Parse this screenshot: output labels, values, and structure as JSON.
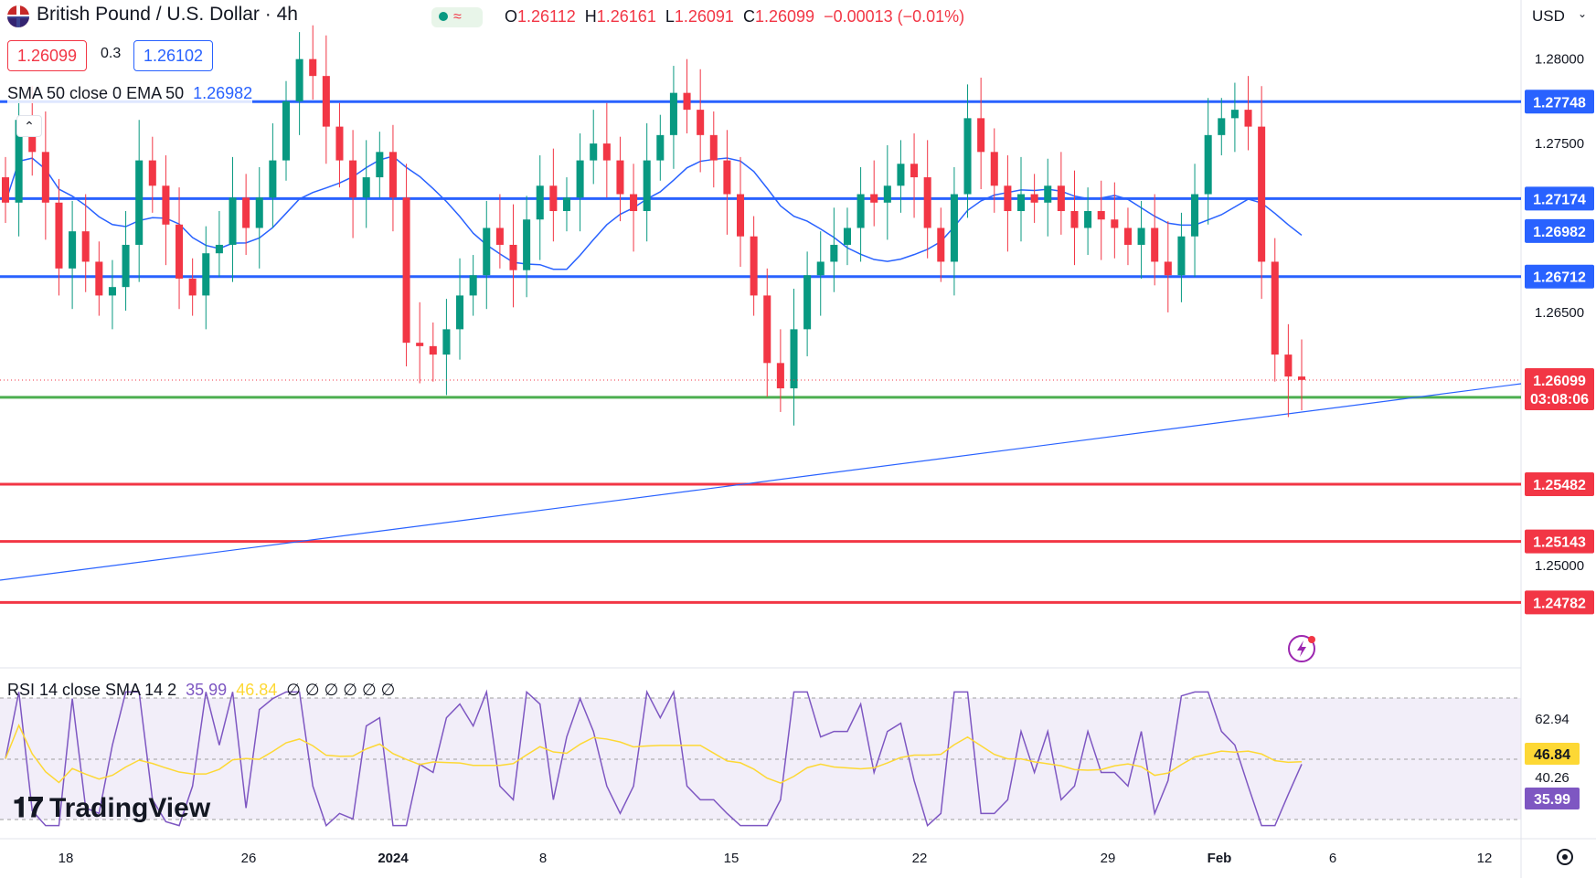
{
  "header": {
    "symbol_title": "British Pound / U.S. Dollar",
    "interval": "4h",
    "ohlc": {
      "o_label": "O",
      "o": "1.26112",
      "h_label": "H",
      "h": "1.26161",
      "l_label": "L",
      "l": "1.26091",
      "c_label": "C",
      "c": "1.26099",
      "change": "−0.00013 (−0.01%)"
    },
    "bid": "1.26099",
    "spread": "0.3",
    "ask": "1.26102",
    "currency": "USD"
  },
  "indicators": {
    "ma_legend": "SMA 50 close 0 EMA 50",
    "ma_value": "1.26982",
    "rsi_legend": "RSI 14 close SMA 14 2",
    "rsi_value": "35.99",
    "rsi_sma_value": "46.84",
    "rsi_trailing": "∅ ∅ ∅ ∅ ∅ ∅"
  },
  "brand": {
    "logo_text": "TradingView"
  },
  "colors": {
    "up": "#089981",
    "down": "#f23645",
    "support_blue": "#2962ff",
    "support_green": "#4caf50",
    "resistance_red": "#f23645",
    "ma": "#2962ff",
    "rsi": "#7e57c2",
    "rsi_sma": "#fdd835"
  },
  "chart_data": {
    "type": "candlestick",
    "symbol": "GBP/USD",
    "timeframe": "4h",
    "y_axis": {
      "ylim": [
        1.244,
        1.2835
      ],
      "tick_labels": [
        "1.28000",
        "1.27500",
        "1.26500",
        "1.25000"
      ],
      "ticks": [
        1.28,
        1.275,
        1.265,
        1.25
      ]
    },
    "x_axis": {
      "tick_labels": [
        "18",
        "26",
        "2024",
        "8",
        "15",
        "22",
        "29",
        "Feb",
        "6",
        "12"
      ]
    },
    "horizontal_levels": [
      {
        "value": 1.27748,
        "label": "1.27748",
        "color": "blue"
      },
      {
        "value": 1.27174,
        "label": "1.27174",
        "color": "blue"
      },
      {
        "value": 1.26712,
        "label": "1.26712",
        "color": "blue"
      },
      {
        "value": 1.25997,
        "label": "1.25997",
        "color": "green"
      },
      {
        "value": 1.25482,
        "label": "1.25482",
        "color": "red"
      },
      {
        "value": 1.25143,
        "label": "1.25143",
        "color": "red"
      },
      {
        "value": 1.24782,
        "label": "1.24782",
        "color": "red"
      }
    ],
    "last_price": {
      "value": 1.26099,
      "label": "1.26099",
      "countdown": "03:08:06"
    },
    "ma_value": {
      "value": 1.26982,
      "label": "1.26982"
    },
    "candles_close_approx": [
      1.2715,
      1.2764,
      1.2745,
      1.2715,
      1.2676,
      1.2698,
      1.268,
      1.266,
      1.2665,
      1.269,
      1.274,
      1.2725,
      1.2702,
      1.267,
      1.266,
      1.2685,
      1.269,
      1.2718,
      1.27,
      1.2718,
      1.274,
      1.2775,
      1.28,
      1.279,
      1.276,
      1.274,
      1.2718,
      1.273,
      1.2745,
      1.2718,
      1.2632,
      1.263,
      1.2625,
      1.264,
      1.266,
      1.2672,
      1.27,
      1.269,
      1.2675,
      1.2705,
      1.2725,
      1.271,
      1.2718,
      1.274,
      1.275,
      1.274,
      1.272,
      1.271,
      1.274,
      1.2755,
      1.278,
      1.277,
      1.2755,
      1.274,
      1.272,
      1.2695,
      1.266,
      1.262,
      1.2605,
      1.264,
      1.2672,
      1.268,
      1.269,
      1.27,
      1.272,
      1.2715,
      1.2725,
      1.2738,
      1.273,
      1.27,
      1.268,
      1.272,
      1.2765,
      1.2745,
      1.2725,
      1.271,
      1.272,
      1.2715,
      1.2725,
      1.271,
      1.27,
      1.271,
      1.2705,
      1.27,
      1.269,
      1.27,
      1.268,
      1.2672,
      1.2695,
      1.272,
      1.2755,
      1.2765,
      1.277,
      1.276,
      1.268,
      1.2625,
      1.2612,
      1.261
    ],
    "rsi": {
      "value": 35.99,
      "sma": 46.84,
      "ticks": [
        62.94,
        46.84,
        40.26,
        35.99
      ]
    }
  }
}
